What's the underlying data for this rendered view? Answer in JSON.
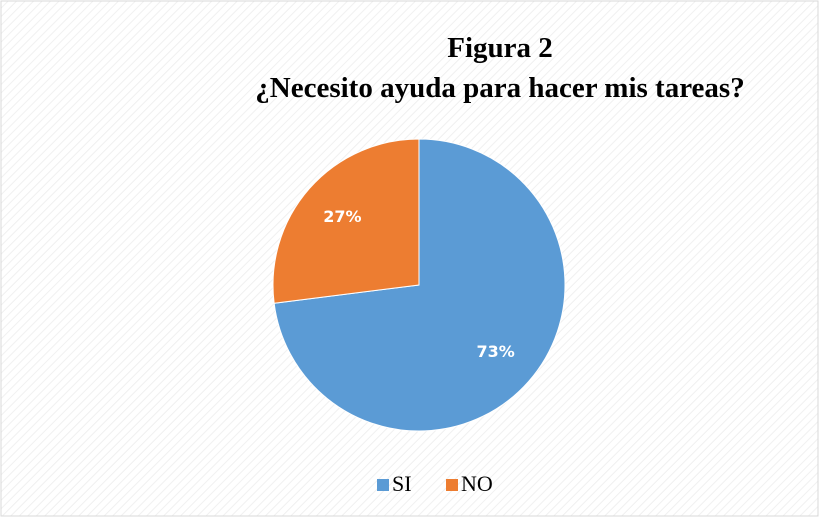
{
  "chart_data": {
    "type": "pie",
    "title": "Figura 2",
    "subtitle": "¿Necesito ayuda para hacer mis tareas?",
    "categories": [
      "SI",
      "NO"
    ],
    "values": [
      73,
      27
    ],
    "value_labels": [
      "73%",
      "27%"
    ],
    "colors": [
      "#5b9bd5",
      "#ed7d31"
    ],
    "legend": "bottom"
  }
}
